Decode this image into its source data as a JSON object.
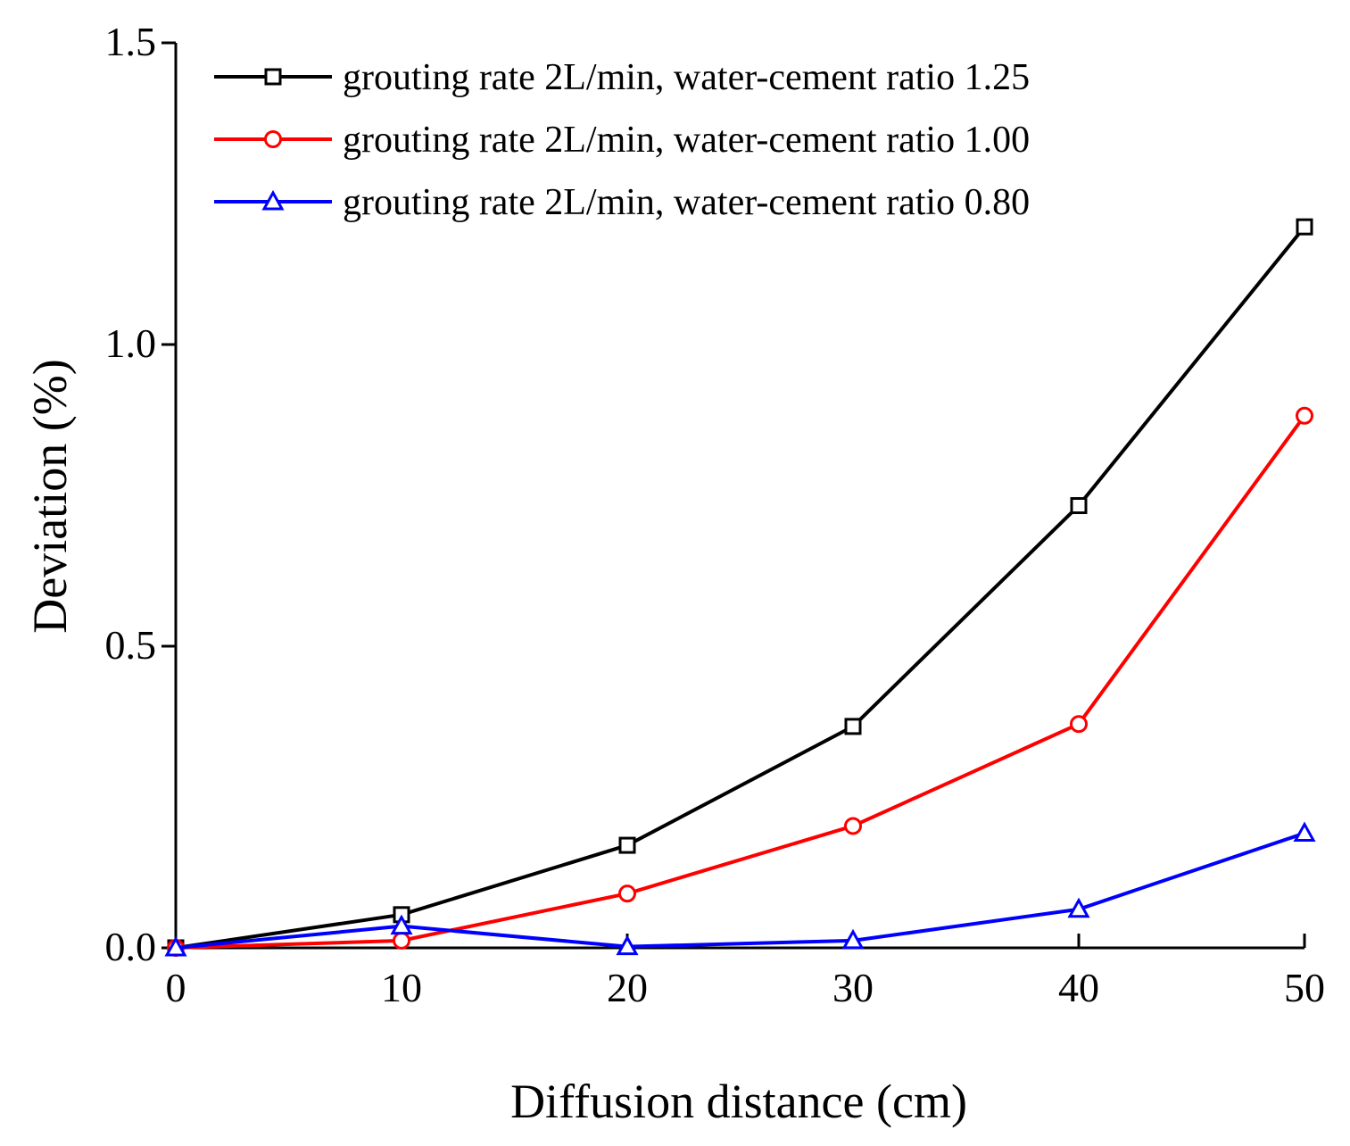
{
  "chart_data": {
    "type": "line",
    "title": "",
    "xlabel": "Diffusion distance (cm)",
    "ylabel": "Deviation (%)",
    "xlim": [
      0,
      50
    ],
    "ylim": [
      0,
      1.5
    ],
    "x_ticks": [
      "0",
      "10",
      "20",
      "30",
      "40",
      "50"
    ],
    "y_ticks": [
      "0.0",
      "0.5",
      "1.0",
      "1.5"
    ],
    "legend_position": "top-left",
    "grid": false,
    "x": [
      0,
      10,
      20,
      30,
      40,
      50
    ],
    "series": [
      {
        "name": "grouting rate 2L/min, water-cement ratio 1.25",
        "color": "#000000",
        "marker": "square",
        "values": [
          0.0,
          0.055,
          0.17,
          0.367,
          0.733,
          1.195
        ]
      },
      {
        "name": "grouting rate 2L/min, water-cement ratio 1.00",
        "color": "#ff0000",
        "marker": "circle",
        "values": [
          0.0,
          0.012,
          0.09,
          0.202,
          0.371,
          0.882
        ]
      },
      {
        "name": "grouting rate 2L/min, water-cement ratio 0.80",
        "color": "#0000ff",
        "marker": "triangle",
        "values": [
          0.0,
          0.036,
          0.002,
          0.012,
          0.064,
          0.19
        ]
      }
    ]
  }
}
